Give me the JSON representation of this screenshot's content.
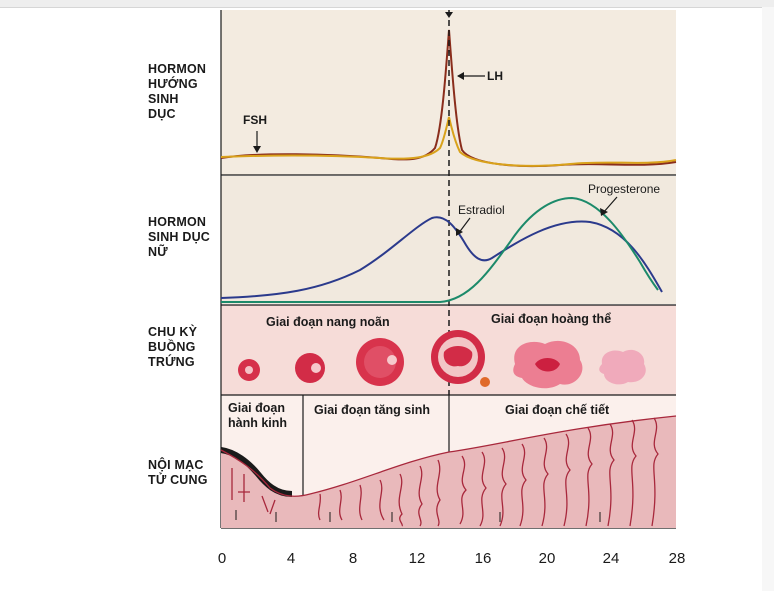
{
  "rows": {
    "gonadotropins": "HORMON\nHƯỚNG\nSINH\nDỤC",
    "ovarian_hormones": "HORMON\nSINH DỤC\nNỮ",
    "ovarian_cycle": "CHU KỲ\nBUỒNG\nTRỨNG",
    "endometrium": "NỘI MẠC\nTỬ CUNG"
  },
  "labels": {
    "fsh": "FSH",
    "lh": "LH",
    "estradiol": "Estradiol",
    "progesterone": "Progesterone",
    "follicular_phase": "Giai đoạn nang noãn",
    "luteal_phase": "Giai đoạn hoàng thể",
    "menstrual_phase_1": "Giai đoạn",
    "menstrual_phase_2": "hành kinh",
    "proliferative_phase": "Giai đoạn tăng sinh",
    "secretory_phase": "Giai đoạn chế tiết"
  },
  "axis": {
    "x_ticks": [
      "0",
      "4",
      "8",
      "12",
      "16",
      "20",
      "24",
      "28"
    ]
  },
  "colors": {
    "lh": "#8a2d1c",
    "fsh": "#d9a21b",
    "estradiol": "#2b3a8c",
    "progesterone": "#1c8a6a",
    "panel_bg": "#f3e9dd",
    "ovary_band": "#f5d9d6",
    "endometrium": "#e7b8bb",
    "gland": "#a8283c"
  }
}
